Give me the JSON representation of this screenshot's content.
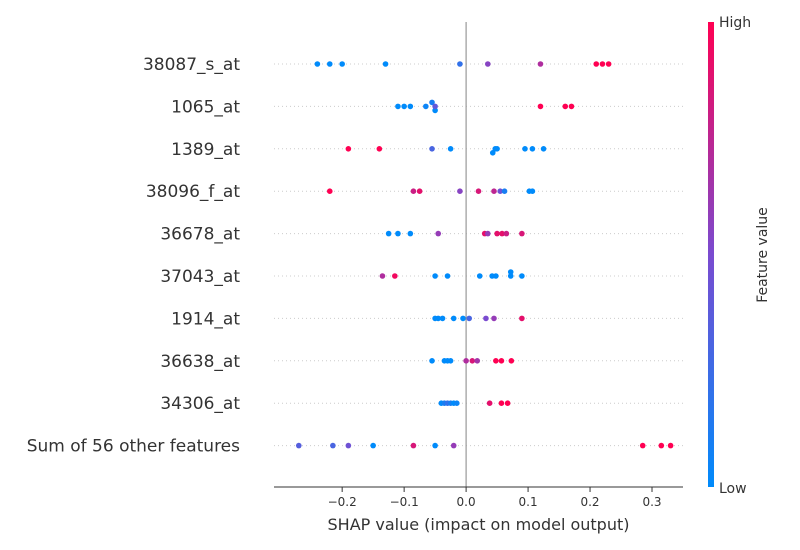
{
  "chart_data": {
    "type": "scatter",
    "subtype": "shap-beeswarm",
    "xlabel": "SHAP value (impact on model output)",
    "xlim": [
      -0.31,
      0.35
    ],
    "x_ticks": [
      -0.2,
      -0.1,
      0.0,
      0.1,
      0.2,
      0.3
    ],
    "x_tick_labels": [
      "−0.2",
      "−0.1",
      "0.0",
      "0.1",
      "0.2",
      "0.3"
    ],
    "colorbar": {
      "label": "Feature value",
      "high_label": "High",
      "low_label": "Low",
      "high_color": "#ff0052",
      "low_color": "#008bfb"
    },
    "grid": false,
    "features": [
      {
        "name": "38087_s_at",
        "points": [
          {
            "x": -0.24,
            "v": 0.0
          },
          {
            "x": -0.22,
            "v": 0.0
          },
          {
            "x": -0.2,
            "v": 0.0
          },
          {
            "x": -0.13,
            "v": 0.0
          },
          {
            "x": -0.01,
            "v": 0.2
          },
          {
            "x": 0.035,
            "v": 0.55
          },
          {
            "x": 0.12,
            "v": 0.7
          },
          {
            "x": 0.21,
            "v": 1.0
          },
          {
            "x": 0.22,
            "v": 1.0
          },
          {
            "x": 0.23,
            "v": 1.0
          }
        ]
      },
      {
        "name": "1065_at",
        "points": [
          {
            "x": -0.11,
            "v": 0.0
          },
          {
            "x": -0.1,
            "v": 0.0
          },
          {
            "x": -0.09,
            "v": 0.0
          },
          {
            "x": -0.065,
            "v": 0.05
          },
          {
            "x": -0.055,
            "v": 0.1,
            "o": -1
          },
          {
            "x": -0.05,
            "v": 0.0,
            "o": 1
          },
          {
            "x": -0.05,
            "v": 0.4,
            "o": 0
          },
          {
            "x": 0.12,
            "v": 1.0
          },
          {
            "x": 0.16,
            "v": 1.0
          },
          {
            "x": 0.17,
            "v": 1.0
          }
        ]
      },
      {
        "name": "1389_at",
        "points": [
          {
            "x": -0.19,
            "v": 1.0
          },
          {
            "x": -0.14,
            "v": 1.0
          },
          {
            "x": -0.055,
            "v": 0.3
          },
          {
            "x": -0.025,
            "v": 0.0
          },
          {
            "x": 0.043,
            "v": 0.0,
            "o": 1
          },
          {
            "x": 0.047,
            "v": 0.0
          },
          {
            "x": 0.05,
            "v": 0.0
          },
          {
            "x": 0.095,
            "v": 0.0
          },
          {
            "x": 0.107,
            "v": 0.0
          },
          {
            "x": 0.125,
            "v": 0.0
          }
        ]
      },
      {
        "name": "38096_f_at",
        "points": [
          {
            "x": -0.22,
            "v": 1.0
          },
          {
            "x": -0.085,
            "v": 0.8
          },
          {
            "x": -0.075,
            "v": 0.9
          },
          {
            "x": -0.01,
            "v": 0.55
          },
          {
            "x": 0.02,
            "v": 0.85
          },
          {
            "x": 0.045,
            "v": 0.75
          },
          {
            "x": 0.055,
            "v": 0.45
          },
          {
            "x": 0.062,
            "v": 0.1
          },
          {
            "x": 0.102,
            "v": 0.0
          },
          {
            "x": 0.107,
            "v": 0.0
          }
        ]
      },
      {
        "name": "36678_at",
        "points": [
          {
            "x": -0.125,
            "v": 0.0
          },
          {
            "x": -0.11,
            "v": 0.0
          },
          {
            "x": -0.09,
            "v": 0.0
          },
          {
            "x": -0.045,
            "v": 0.6
          },
          {
            "x": 0.03,
            "v": 0.9
          },
          {
            "x": 0.035,
            "v": 0.6
          },
          {
            "x": 0.05,
            "v": 0.9
          },
          {
            "x": 0.058,
            "v": 0.9
          },
          {
            "x": 0.065,
            "v": 0.8
          },
          {
            "x": 0.09,
            "v": 0.85
          }
        ]
      },
      {
        "name": "37043_at",
        "points": [
          {
            "x": -0.135,
            "v": 0.7
          },
          {
            "x": -0.115,
            "v": 0.95
          },
          {
            "x": -0.05,
            "v": 0.0
          },
          {
            "x": -0.03,
            "v": 0.0
          },
          {
            "x": 0.022,
            "v": 0.0
          },
          {
            "x": 0.042,
            "v": 0.0
          },
          {
            "x": 0.048,
            "v": 0.0
          },
          {
            "x": 0.072,
            "v": 0.0,
            "o": -1
          },
          {
            "x": 0.072,
            "v": 0.0
          },
          {
            "x": 0.09,
            "v": 0.0
          }
        ]
      },
      {
        "name": "1914_at",
        "points": [
          {
            "x": -0.05,
            "v": 0.0
          },
          {
            "x": -0.045,
            "v": 0.0
          },
          {
            "x": -0.038,
            "v": 0.0
          },
          {
            "x": -0.02,
            "v": 0.0
          },
          {
            "x": -0.005,
            "v": 0.0
          },
          {
            "x": 0.005,
            "v": 0.3
          },
          {
            "x": 0.032,
            "v": 0.5
          },
          {
            "x": 0.045,
            "v": 0.6
          },
          {
            "x": 0.09,
            "v": 0.9
          }
        ]
      },
      {
        "name": "36638_at",
        "points": [
          {
            "x": -0.055,
            "v": 0.0
          },
          {
            "x": -0.035,
            "v": 0.0
          },
          {
            "x": -0.03,
            "v": 0.0
          },
          {
            "x": -0.025,
            "v": 0.0
          },
          {
            "x": 0.0,
            "v": 0.7
          },
          {
            "x": 0.01,
            "v": 0.85
          },
          {
            "x": 0.018,
            "v": 0.65
          },
          {
            "x": 0.048,
            "v": 1.0
          },
          {
            "x": 0.057,
            "v": 1.0
          },
          {
            "x": 0.073,
            "v": 1.0
          }
        ]
      },
      {
        "name": "34306_at",
        "points": [
          {
            "x": -0.04,
            "v": 0.0
          },
          {
            "x": -0.035,
            "v": 0.1
          },
          {
            "x": -0.03,
            "v": 0.2
          },
          {
            "x": -0.025,
            "v": 0.1
          },
          {
            "x": -0.02,
            "v": 0.0
          },
          {
            "x": -0.015,
            "v": 0.05
          },
          {
            "x": 0.038,
            "v": 0.9
          },
          {
            "x": 0.057,
            "v": 1.0
          },
          {
            "x": 0.067,
            "v": 1.0
          }
        ]
      },
      {
        "name": "Sum of 56 other features",
        "points": [
          {
            "x": -0.27,
            "v": 0.35
          },
          {
            "x": -0.215,
            "v": 0.3
          },
          {
            "x": -0.19,
            "v": 0.45
          },
          {
            "x": -0.15,
            "v": 0.0
          },
          {
            "x": -0.085,
            "v": 0.85
          },
          {
            "x": -0.05,
            "v": 0.0
          },
          {
            "x": -0.02,
            "v": 0.6
          },
          {
            "x": 0.285,
            "v": 1.0
          },
          {
            "x": 0.315,
            "v": 1.0
          },
          {
            "x": 0.33,
            "v": 1.0
          }
        ]
      }
    ]
  }
}
